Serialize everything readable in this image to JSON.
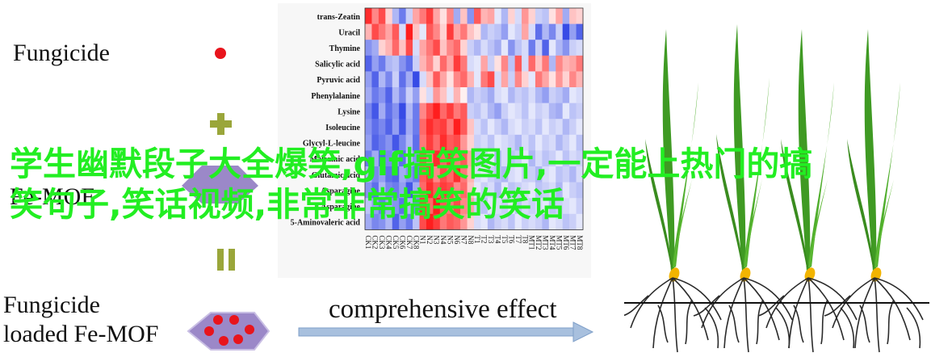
{
  "labels": {
    "fungicide": "Fungicide",
    "fe_mof": "Fe-MOF",
    "loaded_line1": "Fungicide",
    "loaded_line2": "loaded Fe-MOF",
    "effect": "comprehensive effect"
  },
  "overlay_text": "学生幽默段子大全爆笑,gif搞笑图片,一定能上热门的搞笑句子,笑话视频,非常非常搞笑的笑话",
  "colors": {
    "red": "#e8141c",
    "blue": "#3a4fe0",
    "olive": "#9aa63a",
    "purple": "#9b88c8",
    "overlay": "#22ee22",
    "arrow": "#a8c0de",
    "leaf": "#3f9a23",
    "root": "#2a2a2a",
    "seed": "#f2b400"
  },
  "heatmap": {
    "rows": [
      "trans-Zeatin",
      "Uracil",
      "Thymine",
      "Salicylic acid",
      "Pyruvic acid",
      "Phenylalanine",
      "Lysine",
      "Isoleucine",
      "Glycyl-L-leucine",
      "Maleamic acid",
      "Glutamic acid",
      "Asparagine",
      "Asparagine",
      "5-Aminovaleric acid"
    ],
    "cols": [
      "CK1",
      "CK2",
      "CK3",
      "CK4",
      "CK5",
      "CK6",
      "CK7",
      "CK8",
      "N1",
      "N2",
      "N3",
      "N4",
      "N5",
      "N6",
      "N7",
      "N8",
      "T1",
      "T2",
      "T3",
      "T4",
      "T5",
      "T6",
      "T7",
      "T8",
      "MT1",
      "MT2",
      "MT3",
      "MT4",
      "MT5",
      "MT6",
      "MT7",
      "MT8"
    ],
    "values": [
      [
        1.4,
        0.8,
        1.2,
        0.3,
        -0.6,
        -1.1,
        -0.4,
        0.6,
        0.9,
        1.3,
        0.6,
        0.2,
        0.8,
        -0.7,
        0.4,
        -0.9,
        1.1,
        0.5,
        0.6,
        -0.2,
        -0.6,
        0.3,
        -0.3,
        0.7,
        0.3,
        -0.4,
        -0.5,
        0.2,
        0.6,
        -0.7,
        0.4,
        0.3
      ],
      [
        0.5,
        1.2,
        0.9,
        0.6,
        1.1,
        -0.3,
        1.5,
        0.4,
        -0.2,
        1.1,
        0.8,
        0.3,
        1.3,
        0.6,
        0.9,
        0.4,
        0.2,
        -0.6,
        -0.4,
        -0.5,
        -0.8,
        -0.2,
        -0.4,
        0.6,
        -0.3,
        -1.2,
        -0.6,
        -1.0,
        -0.4,
        -1.5,
        -0.8,
        -1.3
      ],
      [
        -0.9,
        -0.7,
        0.3,
        0.5,
        1.0,
        0.4,
        1.2,
        -0.3,
        0.6,
        0.9,
        1.2,
        0.4,
        0.8,
        1.0,
        0.3,
        -0.4,
        -0.6,
        -0.3,
        -0.5,
        -0.7,
        -0.2,
        -0.9,
        -0.5,
        -0.3,
        -1.1,
        -0.4,
        -1.3,
        -0.2,
        -0.6,
        -0.9,
        -0.4,
        -0.3
      ],
      [
        -1.3,
        -0.8,
        -1.1,
        -0.6,
        -0.5,
        -0.9,
        -1.2,
        -0.4,
        0.5,
        0.8,
        0.3,
        1.0,
        0.6,
        1.3,
        0.9,
        -0.3,
        -0.2,
        0.6,
        -0.4,
        0.2,
        0.8,
        -0.5,
        1.1,
        -0.3,
        1.0,
        0.4,
        0.9,
        -0.6,
        0.8,
        0.5,
        0.6,
        0.9
      ],
      [
        -0.8,
        -1.3,
        -0.6,
        -1.0,
        -0.4,
        -1.2,
        -0.7,
        -1.5,
        -0.3,
        0.4,
        1.1,
        0.6,
        0.2,
        0.8,
        1.0,
        0.5,
        -0.2,
        0.9,
        1.2,
        -0.3,
        0.6,
        -0.4,
        0.8,
        0.3,
        -0.2,
        0.9,
        0.6,
        0.2,
        0.7,
        0.3,
        0.8,
        0.5
      ],
      [
        -0.7,
        -1.1,
        -0.9,
        -1.3,
        -0.6,
        -1.0,
        -0.4,
        -0.8,
        0.2,
        -0.3,
        0.7,
        0.4,
        -0.2,
        0.5,
        0.1,
        -0.6,
        -0.4,
        -0.5,
        -0.7,
        -0.3,
        -0.2,
        -0.6,
        -0.4,
        -0.5,
        -0.3,
        -0.6,
        -0.8,
        -0.4,
        -0.5,
        -0.7,
        -0.2,
        -0.3
      ],
      [
        -1.0,
        -1.4,
        -0.7,
        -1.2,
        -0.9,
        -1.5,
        -0.6,
        -1.1,
        0.8,
        1.2,
        1.5,
        1.0,
        1.3,
        0.9,
        1.1,
        -0.4,
        -0.5,
        -0.3,
        -0.6,
        -0.8,
        -0.4,
        -0.2,
        -0.3,
        -0.5,
        -0.2,
        -0.4,
        -0.3,
        -0.6,
        -0.7,
        -0.2,
        -0.5,
        -0.4
      ],
      [
        -0.9,
        -1.2,
        -1.0,
        -1.3,
        -0.8,
        -1.4,
        -0.7,
        -1.1,
        1.0,
        1.4,
        1.2,
        1.3,
        0.9,
        1.5,
        1.1,
        0.4,
        -0.3,
        -0.5,
        -0.2,
        -0.4,
        -0.6,
        -0.3,
        -0.2,
        -0.4,
        -0.3,
        -0.5,
        -0.2,
        -0.4,
        -0.3,
        -0.6,
        -0.4,
        -0.2
      ],
      [
        -0.8,
        -1.3,
        -1.1,
        -0.9,
        -1.4,
        -1.0,
        -0.6,
        -1.2,
        0.9,
        1.3,
        1.0,
        1.4,
        1.1,
        1.2,
        0.7,
        0.3,
        -0.4,
        -0.3,
        -0.5,
        -0.2,
        -0.3,
        -0.4,
        -0.6,
        -0.3,
        -0.5,
        -0.2,
        -0.4,
        -0.3,
        -0.6,
        -0.4,
        -0.2,
        -0.5
      ],
      [
        -1.1,
        -0.7,
        -1.3,
        -1.0,
        -0.8,
        -1.2,
        -0.5,
        -0.9,
        1.2,
        0.8,
        1.4,
        1.0,
        1.3,
        0.9,
        1.1,
        0.6,
        -0.5,
        -0.4,
        -0.2,
        -0.6,
        -0.3,
        -0.5,
        -0.4,
        -0.2,
        -0.6,
        -0.3,
        -0.5,
        -0.4,
        -0.2,
        -0.5,
        -0.3,
        -0.4
      ],
      [
        -0.6,
        -1.0,
        -0.8,
        -1.2,
        -1.3,
        -0.7,
        -0.9,
        -1.1,
        1.1,
        1.3,
        0.8,
        1.2,
        1.0,
        1.4,
        0.9,
        0.5,
        -0.3,
        -0.2,
        -0.4,
        -0.5,
        -0.6,
        -0.3,
        -0.2,
        -0.4,
        -0.4,
        -0.6,
        -0.3,
        -0.2,
        -0.5,
        -0.4,
        -0.6,
        -0.3
      ],
      [
        -0.9,
        -1.2,
        -0.6,
        -1.0,
        -1.1,
        -0.8,
        -1.4,
        -0.7,
        1.0,
        1.4,
        1.1,
        1.3,
        1.2,
        0.8,
        1.0,
        0.4,
        -0.2,
        -0.4,
        -0.3,
        -0.6,
        -0.2,
        -0.5,
        -0.4,
        -0.3,
        -0.2,
        -0.5,
        -0.4,
        -0.3,
        -0.6,
        -0.2,
        -0.4,
        -0.5
      ],
      [
        -0.5,
        -0.8,
        -1.1,
        -0.7,
        -0.9,
        -1.2,
        -0.6,
        -1.0,
        1.3,
        1.0,
        1.5,
        1.1,
        0.9,
        1.2,
        0.8,
        0.6,
        -0.4,
        -0.5,
        -0.2,
        -0.3,
        -0.4,
        -0.2,
        -0.5,
        -0.3,
        -0.4,
        -0.3,
        -0.2,
        -0.5,
        -0.4,
        -0.3,
        -0.2,
        -0.4
      ],
      [
        -0.7,
        -1.0,
        -0.9,
        -0.6,
        -1.3,
        -0.8,
        -1.1,
        -0.5,
        1.2,
        1.5,
        1.3,
        0.9,
        1.1,
        1.0,
        0.7,
        0.3,
        -0.3,
        -0.2,
        -0.6,
        -0.4,
        -0.3,
        -0.5,
        -0.2,
        -0.4,
        -0.3,
        -0.4,
        -0.6,
        -0.2,
        -0.3,
        -0.5,
        -0.4,
        -0.2
      ]
    ]
  }
}
